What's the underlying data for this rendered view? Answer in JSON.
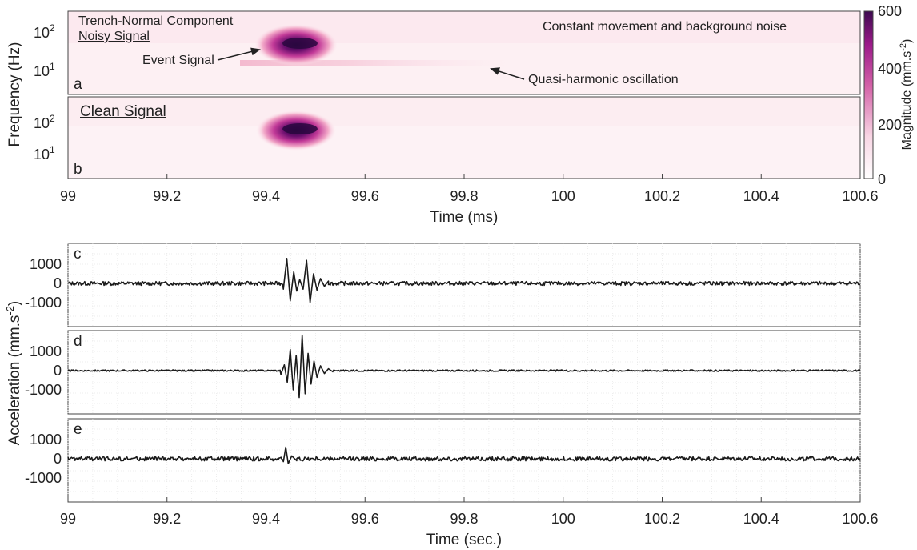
{
  "spectrograms": {
    "ylabel": "Frequency (Hz)",
    "xlabel": "Time (ms)",
    "xticks": [
      "99",
      "99.2",
      "99.4",
      "99.6",
      "99.8",
      "100",
      "100.2",
      "100.4",
      "100.6"
    ],
    "yticks": [
      {
        "base": "10",
        "exp": "2"
      },
      {
        "base": "10",
        "exp": "1"
      }
    ],
    "colorbar": {
      "label": "Magnitude (mm.s",
      "label_exp": "-2",
      "label_close": ")",
      "ticks": [
        "600",
        "400",
        "200",
        "0"
      ],
      "colors": [
        "#ffffff",
        "#f7cfe0",
        "#d463a8",
        "#9c1a8a",
        "#3d0a50"
      ]
    },
    "panel_a": {
      "letter": "a",
      "title_line1": "Trench-Normal Component",
      "title_line2": "Noisy Signal",
      "event_label": "Event Signal",
      "noise_label": "Constant movement and background noise",
      "oscillation_label": "Quasi-harmonic oscillation"
    },
    "panel_b": {
      "letter": "b",
      "title": "Clean Signal"
    }
  },
  "waveforms": {
    "ylabel": "Acceleration (mm.s",
    "ylabel_exp": "-2",
    "ylabel_close": ")",
    "xlabel": "Time (sec.)",
    "xticks": [
      "99",
      "99.2",
      "99.4",
      "99.6",
      "99.8",
      "100",
      "100.2",
      "100.4",
      "100.6"
    ],
    "yticks": [
      "1000",
      "0",
      "-1000"
    ],
    "panels": [
      {
        "letter": "c"
      },
      {
        "letter": "d"
      },
      {
        "letter": "e"
      }
    ]
  },
  "chart_data": [
    {
      "type": "heatmap",
      "panel": "a",
      "x_range": [
        99,
        100.6
      ],
      "y_scale": "log",
      "y_ticks": [
        10,
        100
      ],
      "color_range": [
        0,
        600
      ],
      "features": [
        {
          "name": "Event Signal",
          "time_start": 99.42,
          "time_end": 99.52,
          "freq_hz": 50,
          "peak_magnitude": 600
        },
        {
          "name": "Quasi-harmonic oscillation",
          "time_start": 99.42,
          "time_end": 100.1,
          "freq_hz": 15,
          "peak_magnitude": 100
        }
      ]
    },
    {
      "type": "heatmap",
      "panel": "b",
      "x_range": [
        99,
        100.6
      ],
      "y_scale": "log",
      "y_ticks": [
        10,
        100
      ],
      "color_range": [
        0,
        600
      ],
      "features": [
        {
          "name": "Event Signal",
          "time_start": 99.42,
          "time_end": 99.52,
          "freq_hz": 50,
          "peak_magnitude": 600
        }
      ]
    },
    {
      "type": "line",
      "panel": "c",
      "x_range": [
        99,
        100.6
      ],
      "y_ticks": [
        -1000,
        0,
        1000
      ],
      "noise_amplitude": 100,
      "event_peaks": [
        {
          "x": 99.435,
          "y": -300
        },
        {
          "x": 99.442,
          "y": 1300
        },
        {
          "x": 99.449,
          "y": -900
        },
        {
          "x": 99.456,
          "y": 600
        },
        {
          "x": 99.462,
          "y": -400
        },
        {
          "x": 99.468,
          "y": 200
        },
        {
          "x": 99.475,
          "y": -300
        },
        {
          "x": 99.482,
          "y": 1200
        },
        {
          "x": 99.489,
          "y": -1000
        },
        {
          "x": 99.496,
          "y": 500
        },
        {
          "x": 99.503,
          "y": -350
        },
        {
          "x": 99.51,
          "y": 250
        },
        {
          "x": 99.518,
          "y": -150
        },
        {
          "x": 99.526,
          "y": 120
        }
      ]
    },
    {
      "type": "line",
      "panel": "d",
      "x_range": [
        99,
        100.6
      ],
      "y_ticks": [
        -1000,
        0,
        1000
      ],
      "noise_amplitude": 40,
      "event_peaks": [
        {
          "x": 99.43,
          "y": -200
        },
        {
          "x": 99.437,
          "y": 300
        },
        {
          "x": 99.443,
          "y": -600
        },
        {
          "x": 99.449,
          "y": 1100
        },
        {
          "x": 99.455,
          "y": -1000
        },
        {
          "x": 99.461,
          "y": 800
        },
        {
          "x": 99.467,
          "y": -1400
        },
        {
          "x": 99.473,
          "y": 1850
        },
        {
          "x": 99.479,
          "y": -1200
        },
        {
          "x": 99.485,
          "y": 900
        },
        {
          "x": 99.491,
          "y": -700
        },
        {
          "x": 99.497,
          "y": 500
        },
        {
          "x": 99.503,
          "y": -350
        },
        {
          "x": 99.51,
          "y": 250
        },
        {
          "x": 99.518,
          "y": -150
        },
        {
          "x": 99.526,
          "y": 100
        },
        {
          "x": 99.535,
          "y": -60
        }
      ]
    },
    {
      "type": "line",
      "panel": "e",
      "x_range": [
        99,
        100.6
      ],
      "y_ticks": [
        -1000,
        0,
        1000
      ],
      "noise_amplitude": 110,
      "event_peaks": [
        {
          "x": 99.435,
          "y": -150
        },
        {
          "x": 99.44,
          "y": 600
        },
        {
          "x": 99.445,
          "y": -250
        },
        {
          "x": 99.452,
          "y": 150
        },
        {
          "x": 99.462,
          "y": -100
        }
      ]
    }
  ]
}
